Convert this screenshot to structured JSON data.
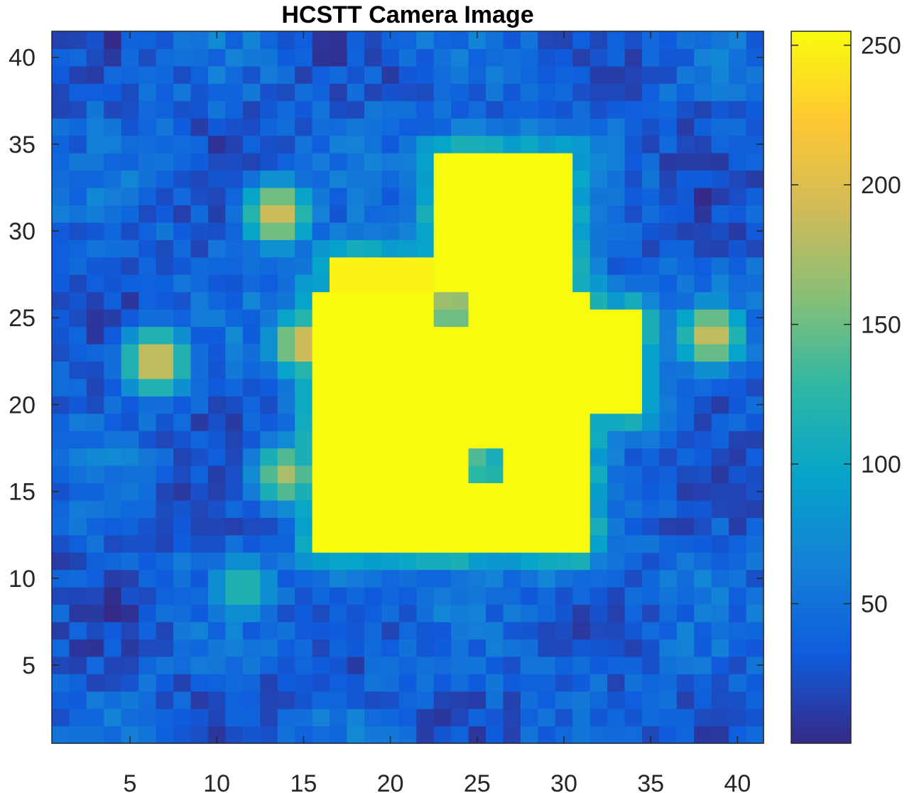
{
  "chart_data": {
    "type": "heatmap",
    "title": "HCSTT Camera Image",
    "xlabel": "",
    "ylabel": "",
    "grid_size": 41,
    "xlim": [
      0.5,
      41.5
    ],
    "ylim": [
      0.5,
      41.5
    ],
    "x_ticks": [
      5,
      10,
      15,
      20,
      25,
      30,
      35,
      40
    ],
    "y_ticks": [
      5,
      10,
      15,
      20,
      25,
      30,
      35,
      40
    ],
    "colorbar": {
      "range": [
        0,
        255
      ],
      "ticks": [
        50,
        100,
        150,
        200,
        250
      ],
      "colormap": "parula"
    },
    "colormap_stops": [
      "#352a87",
      "#0f5cdd",
      "#1481d6",
      "#06a4ca",
      "#2eb7a4",
      "#87bf77",
      "#d1bb59",
      "#fec832",
      "#f9fb0e"
    ],
    "bright_regions": [
      {
        "label": "central body",
        "x": [
          16,
          31
        ],
        "y": [
          12,
          26
        ],
        "value": 255
      },
      {
        "label": "upper lobe",
        "x": [
          23,
          30
        ],
        "y": [
          26,
          34
        ],
        "value": 255
      },
      {
        "label": "right arm",
        "x": [
          31,
          34
        ],
        "y": [
          20,
          25
        ],
        "value": 255
      },
      {
        "label": "left finger",
        "x": [
          17,
          22
        ],
        "y": [
          23,
          28
        ],
        "value": 250
      }
    ],
    "hot_spots": [
      {
        "x": 6.5,
        "y": 22.5,
        "value": 205
      },
      {
        "x": 13.5,
        "y": 31,
        "value": 200
      },
      {
        "x": 38.5,
        "y": 24,
        "value": 195
      },
      {
        "x": 11.5,
        "y": 9.5,
        "value": 130
      },
      {
        "x": 14,
        "y": 16,
        "value": 175
      },
      {
        "x": 15,
        "y": 23.5,
        "value": 200
      }
    ],
    "dark_patches": [
      {
        "x": 25.5,
        "y": 16.5,
        "value": 110
      },
      {
        "x": 23.5,
        "y": 25.5,
        "value": 130
      }
    ],
    "background_level": 35
  }
}
